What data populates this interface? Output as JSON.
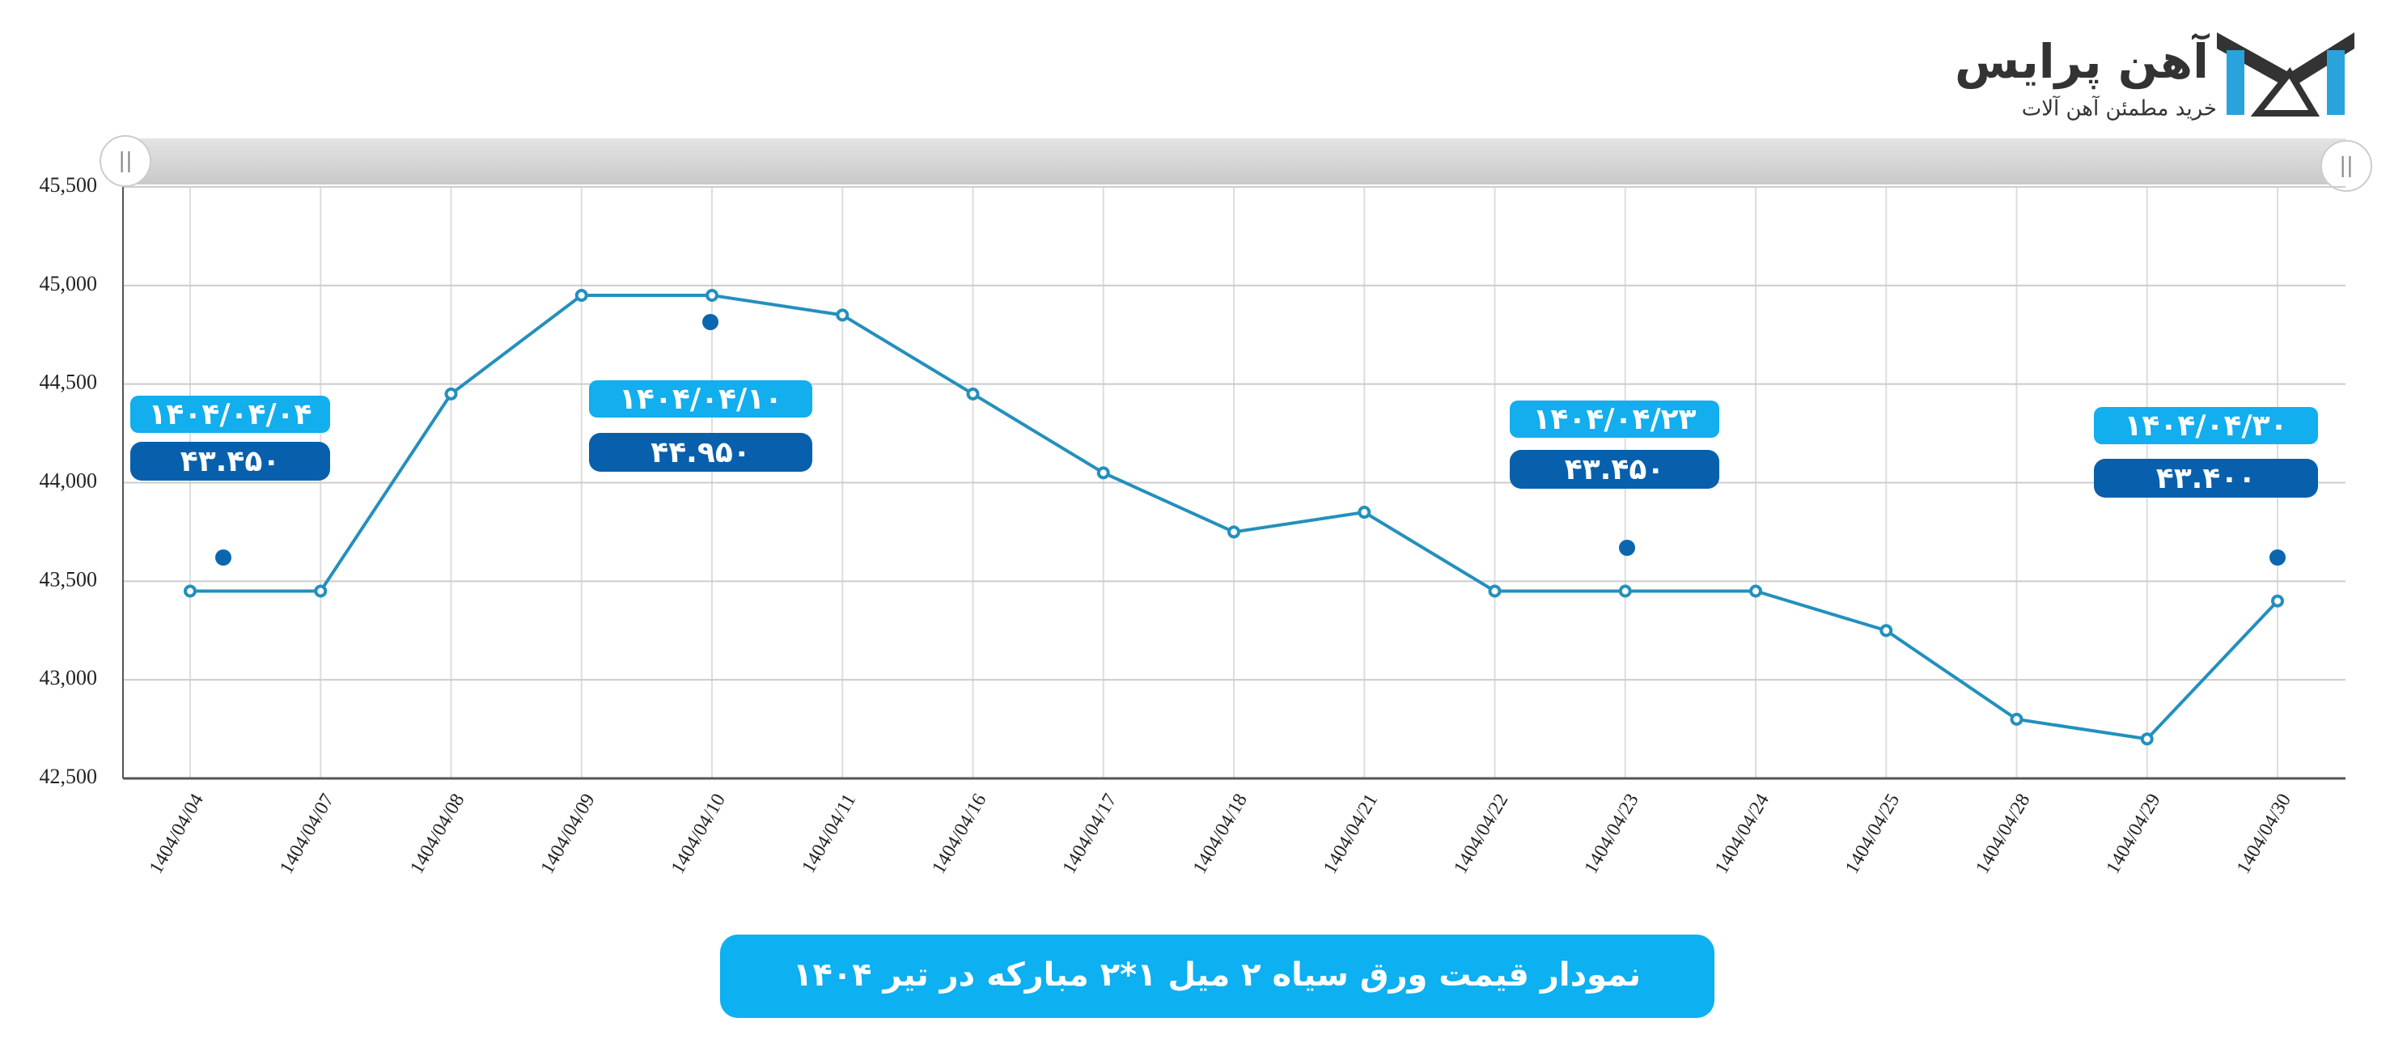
{
  "logo": {
    "name": "آهن پرایس",
    "tagline": "خرید مطمئن آهن آلات"
  },
  "chart_data": {
    "type": "line",
    "title": "نمودار قیمت ورق سیاه ۲ میل ۱*۲ مبارکه در تیر ۱۴۰۴",
    "categories": [
      "1404/04/04",
      "1404/04/07",
      "1404/04/08",
      "1404/04/09",
      "1404/04/10",
      "1404/04/11",
      "1404/04/16",
      "1404/04/17",
      "1404/04/18",
      "1404/04/21",
      "1404/04/22",
      "1404/04/23",
      "1404/04/24",
      "1404/04/25",
      "1404/04/28",
      "1404/04/29",
      "1404/04/30"
    ],
    "values": [
      43450,
      43450,
      44450,
      44950,
      44950,
      44850,
      44450,
      44050,
      43750,
      43850,
      43450,
      43450,
      43450,
      43250,
      42800,
      42700,
      43400
    ],
    "color": "#2390bd",
    "ylim": [
      42500,
      45500
    ],
    "yticks": [
      {
        "value": 42500,
        "label": "42,500"
      },
      {
        "value": 43000,
        "label": "43,000"
      },
      {
        "value": 43500,
        "label": "43,500"
      },
      {
        "value": 44000,
        "label": "44,000"
      },
      {
        "value": 44500,
        "label": "44,500"
      },
      {
        "value": 45000,
        "label": "45,000"
      },
      {
        "value": 45500,
        "label": "45,500"
      }
    ],
    "grid": true,
    "annotations": [
      {
        "date": "۱۴۰۴/۰۴/۰۴",
        "value": "۴۳.۴۵۰"
      },
      {
        "date": "۱۴۰۴/۰۴/۱۰",
        "value": "۴۴.۹۵۰"
      },
      {
        "date": "۱۴۰۴/۰۴/۲۳",
        "value": "۴۳.۴۵۰"
      },
      {
        "date": "۱۴۰۴/۰۴/۳۰",
        "value": "۴۳.۴۰۰"
      }
    ]
  }
}
